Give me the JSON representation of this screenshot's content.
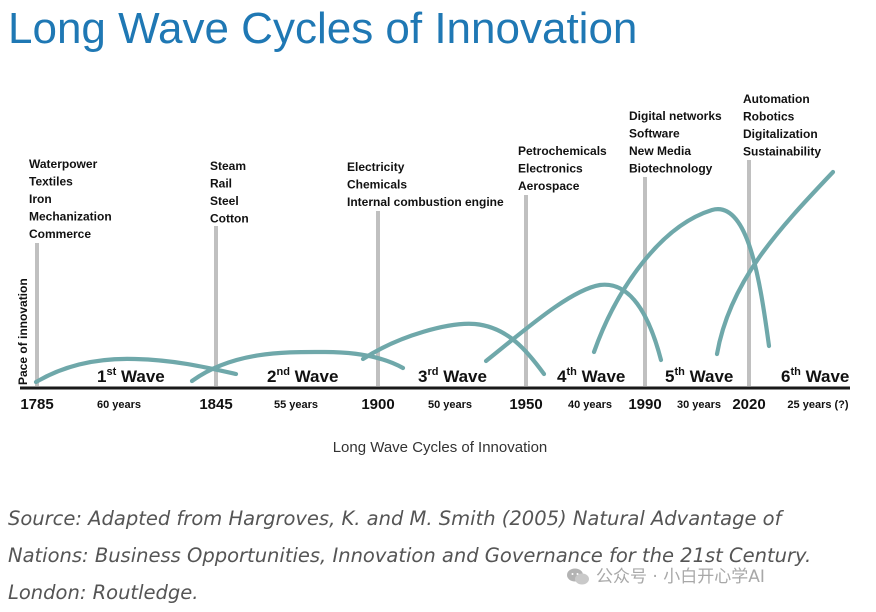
{
  "title": "Long Wave Cycles of Innovation",
  "y_axis_label": "Pace of innovation",
  "colors": {
    "wave": "#6fa8aa",
    "marker": "#c0c0c0",
    "title": "#1f78b4"
  },
  "years": [
    "1785",
    "1845",
    "1900",
    "1950",
    "1990",
    "2020"
  ],
  "durations": [
    "60 years",
    "55 years",
    "50 years",
    "40 years",
    "30 years",
    "25 years (?)"
  ],
  "waves": [
    {
      "ordinal": "1",
      "suffix": "st",
      "word": " Wave",
      "tech": [
        "Waterpower",
        "Textiles",
        "Iron",
        "Mechanization",
        "Commerce"
      ]
    },
    {
      "ordinal": "2",
      "suffix": "nd",
      "word": " Wave",
      "tech": [
        "Steam",
        "Rail",
        "Steel",
        "Cotton"
      ]
    },
    {
      "ordinal": "3",
      "suffix": "rd",
      "word": " Wave",
      "tech": [
        "Electricity",
        "Chemicals",
        "Internal combustion engine"
      ]
    },
    {
      "ordinal": "4",
      "suffix": "th",
      "word": " Wave",
      "tech": [
        "Petrochemicals",
        "Electronics",
        "Aerospace"
      ]
    },
    {
      "ordinal": "5",
      "suffix": "th",
      "word": " Wave",
      "tech": [
        "Digital networks",
        "Software",
        "New Media",
        "Biotechnology"
      ]
    },
    {
      "ordinal": "6",
      "suffix": "th",
      "word": " Wave",
      "tech": [
        "Automation",
        "Robotics",
        "Digitalization",
        "Sustainability"
      ]
    }
  ],
  "caption": "Long Wave Cycles of Innovation",
  "source": "Source: Adapted from Hargroves, K. and M. Smith (2005) Natural Advantage of Nations: Business Opportunities, Innovation and Governance for the 21st Century. London: Routledge.",
  "watermark": "公众号 · 小白开心学AI"
}
